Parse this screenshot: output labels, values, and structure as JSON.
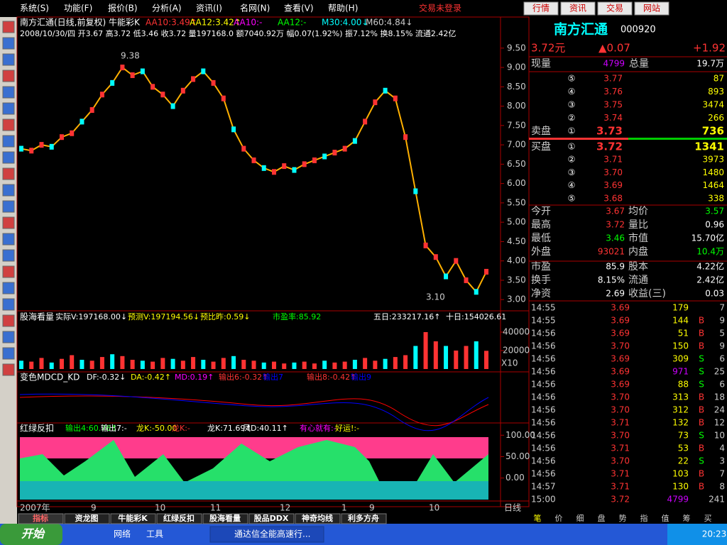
{
  "menu": [
    "系统(S)",
    "功能(F)",
    "报价(B)",
    "分析(A)",
    "资讯(I)",
    "名网(N)",
    "查看(V)",
    "帮助(H)"
  ],
  "status": "交易未登录",
  "buttons": [
    "行情",
    "资讯",
    "交易",
    "网站"
  ],
  "chart_data": {
    "type": "line",
    "title": "南方汇通(日线,前复权) 牛能彩K",
    "indicators": [
      "AA10:3.49↑",
      "AA12:3.42↑",
      "AA10:-",
      "AA12:-",
      "M30:4.00↓",
      "M60:4.84↓"
    ],
    "subtitle": "2008/10/30/四 开3.67 高3.72 低3.46 收3.72 量197168.0 额7040.92万 幅0.07(1.92%) 振7.12% 换8.15% 流通2.42亿",
    "annotations": [
      "9.38",
      "3.10"
    ],
    "values": [
      6.9,
      6.85,
      7.0,
      6.95,
      7.2,
      7.3,
      7.6,
      7.9,
      8.3,
      8.6,
      9.0,
      8.8,
      8.9,
      8.5,
      8.3,
      8.0,
      8.4,
      8.7,
      8.9,
      8.6,
      8.2,
      7.4,
      6.9,
      6.6,
      6.4,
      6.3,
      6.45,
      6.35,
      6.5,
      6.6,
      6.7,
      6.8,
      6.9,
      7.1,
      7.6,
      8.1,
      8.4,
      8.2,
      7.2,
      5.8,
      4.4,
      4.1,
      3.6,
      4.0,
      3.5,
      3.2,
      3.72
    ],
    "ylim": [
      2.71,
      10.34
    ],
    "yticks": [
      {
        "value": 3,
        "label": "3.00"
      },
      {
        "value": 3.5,
        "label": "3.50"
      },
      {
        "value": 4,
        "label": "4.00"
      },
      {
        "value": 4.5,
        "label": "4.50"
      },
      {
        "value": 5,
        "label": "5.00"
      },
      {
        "value": 5.5,
        "label": "5.50"
      },
      {
        "value": 6,
        "label": "6.00"
      },
      {
        "value": 6.5,
        "label": "6.50"
      },
      {
        "value": 7,
        "label": "7.00"
      },
      {
        "value": 7.5,
        "label": "7.50"
      },
      {
        "value": 8,
        "label": "8.00"
      },
      {
        "value": 8.5,
        "label": "8.50"
      },
      {
        "value": 9,
        "label": "9.00"
      },
      {
        "value": 9.5,
        "label": "9.50"
      }
    ],
    "xlabels": [
      "2007年",
      "9",
      "10",
      "11",
      "12",
      "1",
      "9",
      "10",
      "日线"
    ],
    "volume": {
      "title": "股海看量",
      "fields": [
        "实际V:197168.00↓",
        "预测V:197194.56↓",
        "预比昨:0.59↓",
        "市盈率:85.92",
        "五日:233217.16↑",
        "十日:154026.61"
      ],
      "values": [
        9000,
        8000,
        12000,
        7000,
        11000,
        15000,
        10000,
        9000,
        13000,
        16000,
        14000,
        10000,
        9000,
        8000,
        12000,
        11000,
        9000,
        13000,
        10000,
        8000,
        12000,
        14000,
        10000,
        9000,
        7000,
        8000,
        6000,
        7000,
        8000,
        6000,
        9000,
        7000,
        8000,
        10000,
        12000,
        9000,
        11000,
        13000,
        15000,
        25000,
        40000,
        30000,
        25000,
        20000,
        25000,
        30000,
        19717
      ],
      "ylim": [
        0,
        50000
      ],
      "yticks": [
        20000,
        40000
      ],
      "unit": "X10"
    },
    "macd": {
      "title": "变色MDCD_KD",
      "fields": [
        "DF:-0.32↓",
        "DA:-0.42↑",
        "MD:0.19↑",
        "输出6:-0.32↑",
        "输出7",
        "输出8:-0.42↑",
        "输出9"
      ]
    },
    "kd": {
      "title": "红绿反扣",
      "fields": [
        "输出4:60.76↑",
        "输出7:-",
        "龙K:-50.00",
        "龙K:-",
        "龙K:71.69↑",
        "凤D:40.11↑",
        "有心就有:-",
        "好运!:-"
      ],
      "ylim": [
        -52,
        127
      ],
      "yticks": [
        {
          "value": 100,
          "label": "100.00"
        },
        {
          "value": 50,
          "label": "50.00"
        },
        {
          "value": 0,
          "label": "0.00"
        }
      ]
    },
    "tabs": [
      "指标",
      "资龙图",
      "牛能彩K",
      "红绿反扣",
      "股海看量",
      "股品DDX",
      "神奇均线",
      "利多方舟"
    ]
  },
  "quote": {
    "name": "南方汇通",
    "code": "000920",
    "price": "3.72元",
    "change": "▲0.07",
    "pct": "+1.92",
    "nowvol_label": "现量",
    "nowvol": "4799",
    "totvol_label": "总量",
    "totvol": "19.7万",
    "sell_label": "卖盘",
    "buy_label": "买盘",
    "sell": [
      [
        "⑤",
        "3.77",
        "87"
      ],
      [
        "④",
        "3.76",
        "893"
      ],
      [
        "③",
        "3.75",
        "3474"
      ],
      [
        "②",
        "3.74",
        "266"
      ],
      [
        "①",
        "3.73",
        "736"
      ]
    ],
    "buy": [
      [
        "①",
        "3.72",
        "1341"
      ],
      [
        "②",
        "3.71",
        "3973"
      ],
      [
        "③",
        "3.70",
        "1480"
      ],
      [
        "④",
        "3.69",
        "1464"
      ],
      [
        "⑤",
        "3.68",
        "338"
      ]
    ],
    "stats": [
      [
        "今开",
        "3.67",
        "均价",
        "3.57"
      ],
      [
        "最高",
        "3.72",
        "量比",
        "0.96"
      ],
      [
        "最低",
        "3.46",
        "市值",
        "15.70亿"
      ],
      [
        "外盘",
        "93021",
        "内盘",
        "10.4万"
      ],
      [
        "市盈",
        "85.9",
        "股本",
        "4.22亿"
      ],
      [
        "换手",
        "8.15%",
        "流通",
        "2.42亿"
      ],
      [
        "净资",
        "2.69",
        "收益(三)",
        "0.03"
      ]
    ],
    "ticks": [
      [
        "14:55",
        "3.69",
        "179",
        "",
        "7"
      ],
      [
        "14:55",
        "3.69",
        "144",
        "B",
        "9"
      ],
      [
        "14:56",
        "3.69",
        "51",
        "B",
        "5"
      ],
      [
        "14:56",
        "3.70",
        "150",
        "B",
        "9"
      ],
      [
        "14:56",
        "3.69",
        "309",
        "S",
        "6"
      ],
      [
        "14:56",
        "3.69",
        "971",
        "S",
        "25"
      ],
      [
        "14:56",
        "3.69",
        "88",
        "S",
        "6"
      ],
      [
        "14:56",
        "3.70",
        "313",
        "B",
        "18"
      ],
      [
        "14:56",
        "3.70",
        "312",
        "B",
        "24"
      ],
      [
        "14:56",
        "3.71",
        "132",
        "B",
        "12"
      ],
      [
        "14:56",
        "3.70",
        "73",
        "S",
        "10"
      ],
      [
        "14:56",
        "3.71",
        "53",
        "B",
        "4"
      ],
      [
        "14:56",
        "3.70",
        "22",
        "S",
        "3"
      ],
      [
        "14:56",
        "3.71",
        "103",
        "B",
        "7"
      ],
      [
        "14:57",
        "3.71",
        "130",
        "B",
        "8"
      ],
      [
        "15:00",
        "3.72",
        "4799",
        "",
        "241"
      ]
    ],
    "bottom_tabs": [
      "笔",
      "价",
      "细",
      "盘",
      "势",
      "指",
      "值",
      "筹",
      "买"
    ]
  },
  "taskbar": {
    "start": "开始",
    "items": [
      "网络",
      "工具",
      "通达信全能高速行..."
    ],
    "clock": "20:23"
  }
}
